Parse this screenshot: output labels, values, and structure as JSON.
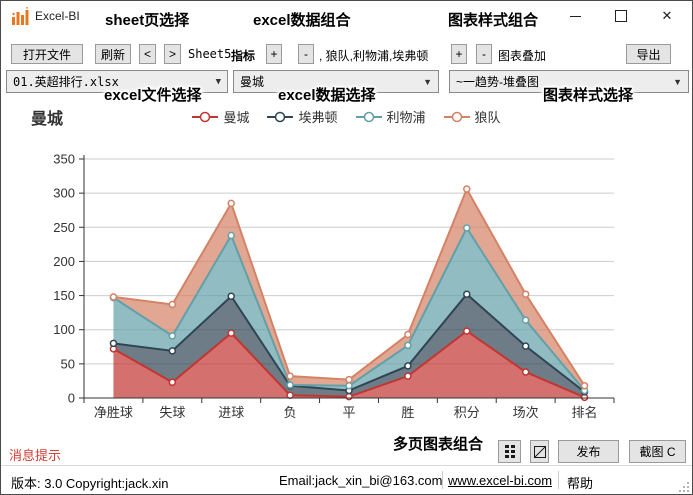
{
  "window": {
    "title": "Excel-BI",
    "controls": {
      "minimize": "minimize",
      "maximize": "maximize",
      "close": "✕"
    }
  },
  "annotations": {
    "sheet_select": "sheet页选择",
    "excel_data_combo": "excel数据组合",
    "chart_style_combo": "图表样式组合",
    "excel_file_select": "excel文件选择",
    "excel_data_select": "excel数据选择",
    "chart_style_select": "图表样式选择",
    "multi_page_combo": "多页图表组合"
  },
  "toolbar": {
    "open_file": "打开文件",
    "refresh": "刷新",
    "prev": "<",
    "next": ">",
    "sheet_name": "Sheet5",
    "indicator_label": "指标",
    "indicator_plus": "+",
    "indicator_minus": "-",
    "series_list_text": ", 狼队,利物浦,埃弗顿",
    "overlay_plus": "+",
    "overlay_minus": "-",
    "overlay_label": "图表叠加",
    "export": "导出"
  },
  "selectors": {
    "file_value": "01.英超排行.xlsx",
    "data_value": "曼城",
    "style_value": "~一趋势-堆叠图"
  },
  "chart_data": {
    "type": "area",
    "stacked": true,
    "title": "曼城",
    "categories": [
      "净胜球",
      "失球",
      "进球",
      "负",
      "平",
      "胜",
      "积分",
      "场次",
      "排名"
    ],
    "series": [
      {
        "name": "曼城",
        "color": "#c23531",
        "values": [
          72,
          23,
          95,
          4,
          2,
          32,
          98,
          38,
          1
        ]
      },
      {
        "name": "埃弗顿",
        "color": "#2f4554",
        "values": [
          8,
          46,
          54,
          14,
          9,
          15,
          54,
          38,
          8
        ]
      },
      {
        "name": "利物浦",
        "color": "#61a0a8",
        "values": [
          67,
          22,
          89,
          1,
          7,
          30,
          97,
          38,
          2
        ]
      },
      {
        "name": "狼队",
        "color": "#d48265",
        "values": [
          1,
          46,
          47,
          13,
          9,
          16,
          57,
          38,
          7
        ]
      }
    ],
    "stack_totals": {
      "净胜球": 148,
      "失球": 137,
      "进球": 285,
      "负": 32,
      "平": 27,
      "胜": 93,
      "积分": 306,
      "场次": 152,
      "排名": 18
    },
    "ylim": [
      0,
      350
    ],
    "ytick_step": 50,
    "grid": true,
    "legend_position": "top-center",
    "area_opacity": 0.7
  },
  "footer": {
    "message": "消息提示",
    "publish": "发布",
    "screenshot": "截图 C"
  },
  "statusbar": {
    "version": "版本: 3.0 Copyright:jack.xin",
    "email": "Email:jack_xin_bi@163.com",
    "website": "www.excel-bi.com",
    "help": "帮助"
  }
}
